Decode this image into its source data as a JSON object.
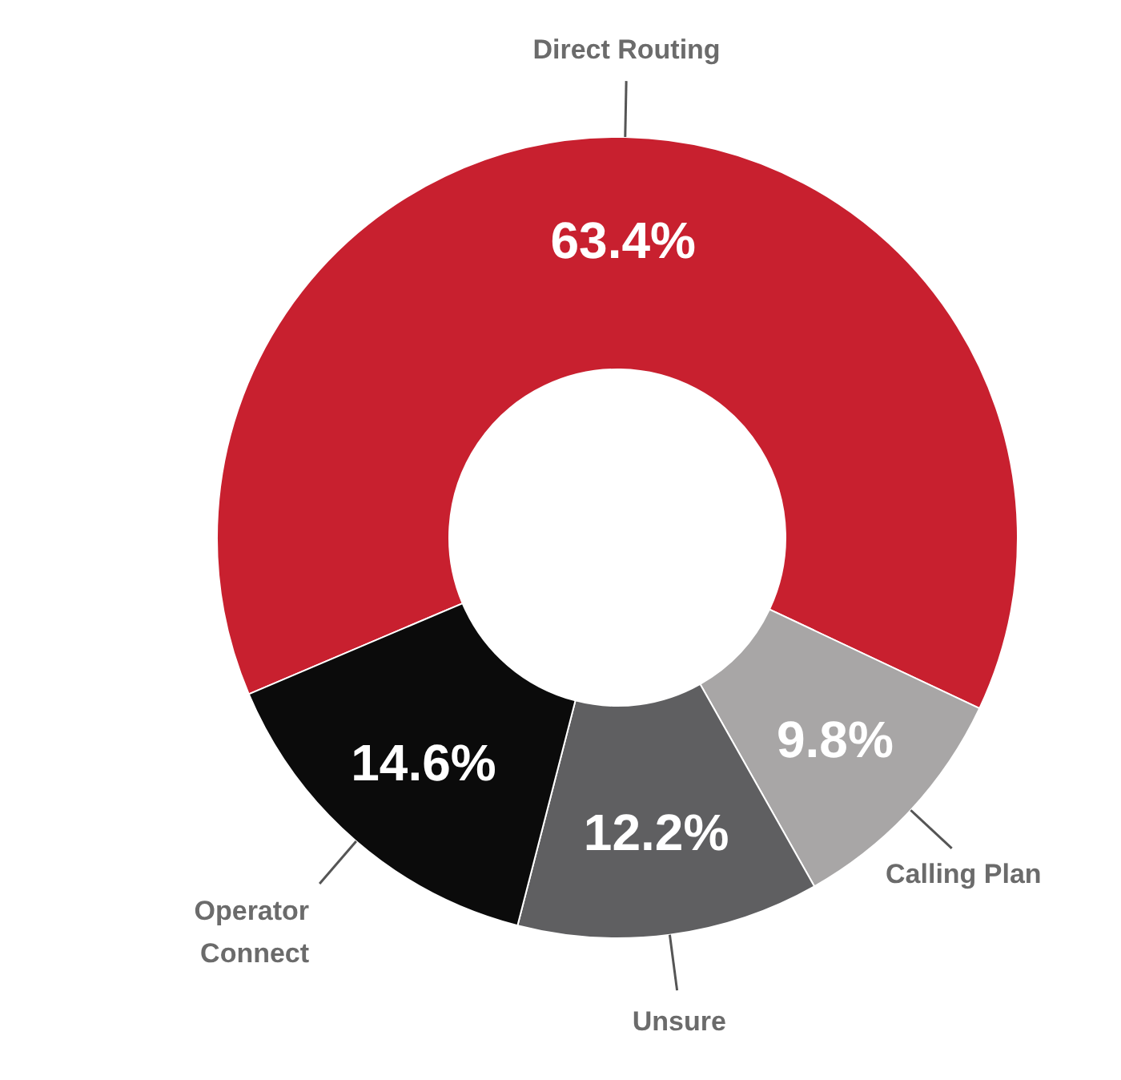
{
  "chart_data": {
    "type": "donut",
    "categories": [
      "Direct Routing",
      "Calling Plan",
      "Unsure",
      "Operator Connect"
    ],
    "values": [
      63.4,
      9.8,
      12.2,
      14.6
    ],
    "value_labels": [
      "63.4%",
      "9.8%",
      "12.2%",
      "14.6%"
    ],
    "colors": [
      "#c8202f",
      "#a8a6a6",
      "#5f5f61",
      "#0b0b0b"
    ]
  }
}
